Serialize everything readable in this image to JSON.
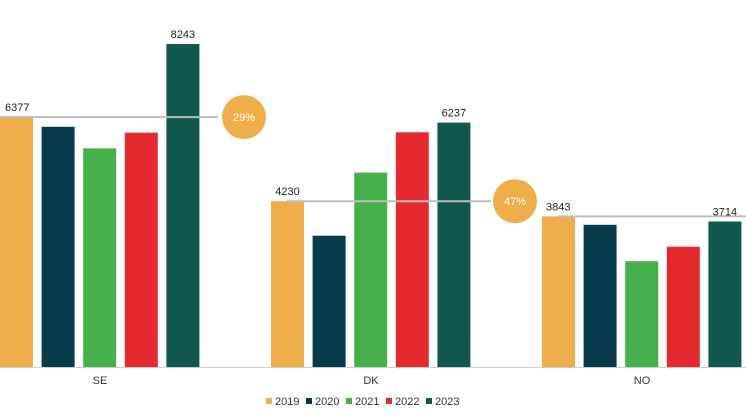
{
  "chart_data": {
    "type": "bar",
    "categories": [
      "SE",
      "DK",
      "NO"
    ],
    "series": [
      {
        "name": "2019",
        "color": "#F0AE4A",
        "values": [
          6377,
          4230,
          3843
        ]
      },
      {
        "name": "2020",
        "color": "#073B4C",
        "values": [
          6130,
          3350,
          3630
        ]
      },
      {
        "name": "2021",
        "color": "#46B04A",
        "values": [
          5580,
          4960,
          2700
        ]
      },
      {
        "name": "2022",
        "color": "#E52A2F",
        "values": [
          5980,
          5990,
          3070
        ]
      },
      {
        "name": "2023",
        "color": "#11574D",
        "values": [
          8243,
          6237,
          3714
        ]
      }
    ],
    "data_labels": [
      {
        "category": "SE",
        "series": "2019",
        "text": "6377"
      },
      {
        "category": "SE",
        "series": "2023",
        "text": "8243"
      },
      {
        "category": "DK",
        "series": "2019",
        "text": "4230"
      },
      {
        "category": "DK",
        "series": "2023",
        "text": "6237"
      },
      {
        "category": "NO",
        "series": "2019",
        "text": "3843"
      },
      {
        "category": "NO",
        "series": "2023",
        "text": "3714"
      }
    ],
    "growth_badges": [
      {
        "category": "SE",
        "text": "29%"
      },
      {
        "category": "DK",
        "text": "47%"
      }
    ],
    "ylim": [
      0,
      8243
    ],
    "grid": false,
    "legend_position": "bottom-center",
    "colors": {
      "badge": "#F0AE4A",
      "reference_line": "#BDBDBD",
      "axis": "#CCCCCC"
    }
  }
}
